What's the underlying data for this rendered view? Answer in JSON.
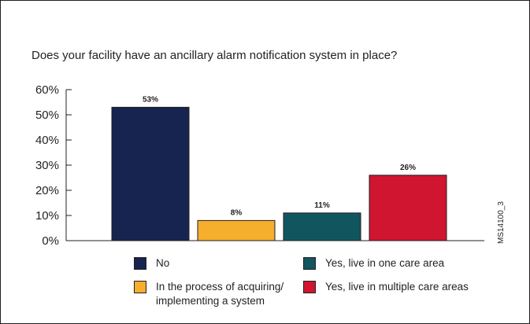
{
  "chart_data": {
    "type": "bar",
    "title": "Does your facility have an ancillary alarm notification system in place?",
    "categories": [
      "No",
      "In the process of acquiring/\nimplementing a system",
      "Yes, live in one care area",
      "Yes, live in multiple care areas"
    ],
    "values": [
      53,
      8,
      11,
      26
    ],
    "value_labels": [
      "53%",
      "8%",
      "11%",
      "26%"
    ],
    "yticks": [
      "0%",
      "10%",
      "20%",
      "30%",
      "40%",
      "50%",
      "60%"
    ],
    "ylim": [
      0,
      60
    ],
    "grid": false,
    "legend_placement": "bottom",
    "colors": [
      "#16244f",
      "#f6ae2d",
      "#11555f",
      "#d01530"
    ],
    "code": "MS14100_3"
  }
}
